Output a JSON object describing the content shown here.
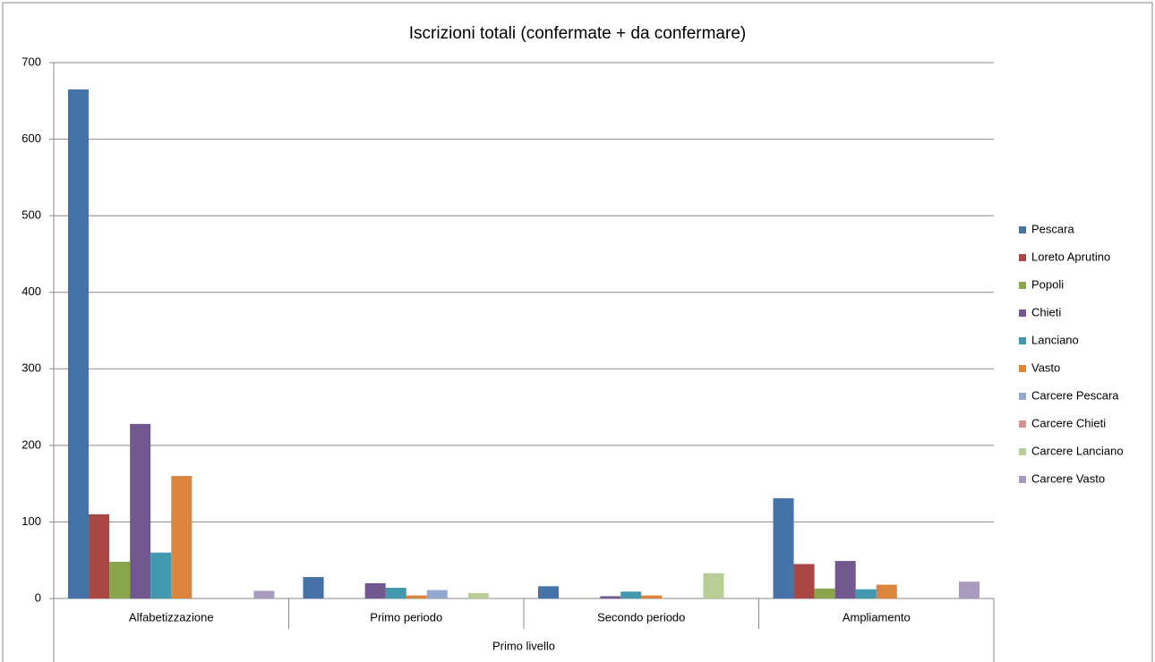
{
  "chart_data": {
    "type": "bar",
    "title": "Iscrizioni totali (confermate + da confermare)",
    "categories": [
      "Alfabetizzazione",
      "Primo periodo",
      "Secondo periodo",
      "Ampliamento"
    ],
    "group_label": "Primo livello",
    "ylim": [
      0,
      700
    ],
    "yticks": [
      0,
      100,
      200,
      300,
      400,
      500,
      600,
      700
    ],
    "grid": true,
    "legend": "right",
    "series": [
      {
        "name": "Pescara",
        "color": "#4572A7",
        "values": [
          665,
          28,
          16,
          131
        ]
      },
      {
        "name": "Loreto Aprutino",
        "color": "#AA4643",
        "values": [
          110,
          0,
          0,
          45
        ]
      },
      {
        "name": "Popoli",
        "color": "#89A54E",
        "values": [
          48,
          0,
          0,
          13
        ]
      },
      {
        "name": "Chieti",
        "color": "#71588F",
        "values": [
          228,
          20,
          3,
          49
        ]
      },
      {
        "name": "Lanciano",
        "color": "#4198AF",
        "values": [
          60,
          14,
          9,
          12
        ]
      },
      {
        "name": "Vasto",
        "color": "#DB843D",
        "values": [
          160,
          4,
          4,
          18
        ]
      },
      {
        "name": "Carcere Pescara",
        "color": "#93A9CF",
        "values": [
          0,
          11,
          0,
          0
        ]
      },
      {
        "name": "Carcere Chieti",
        "color": "#D19392",
        "values": [
          0,
          0,
          0,
          0
        ]
      },
      {
        "name": "Carcere Lanciano",
        "color": "#B9CD96",
        "values": [
          0,
          7,
          33,
          0
        ]
      },
      {
        "name": "Carcere Vasto",
        "color": "#A99BBD",
        "values": [
          10,
          0,
          0,
          22
        ]
      }
    ]
  }
}
